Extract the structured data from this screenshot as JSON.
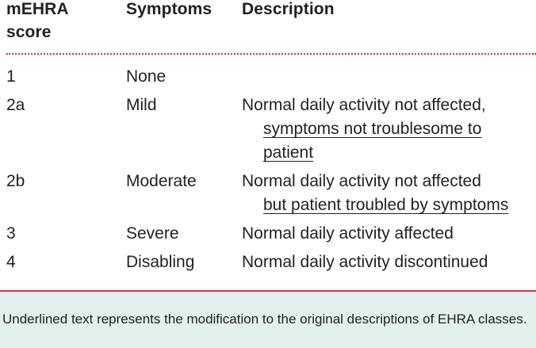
{
  "table": {
    "headers": {
      "score": "mEHRA score",
      "symptoms": "Symptoms",
      "description": "Description"
    },
    "rows": [
      {
        "score": "1",
        "symptoms": "None",
        "description": []
      },
      {
        "score": "2a",
        "symptoms": "Mild",
        "description": [
          "Normal daily activity not affected,",
          "symptoms not troublesome to",
          "patient"
        ]
      },
      {
        "score": "2b",
        "symptoms": "Moderate",
        "description": [
          "Normal daily activity not affected",
          "but patient troubled by symptoms"
        ]
      },
      {
        "score": "3",
        "symptoms": "Severe",
        "description": [
          "Normal daily activity affected"
        ]
      },
      {
        "score": "4",
        "symptoms": "Disabling",
        "description": [
          "Normal daily activity discontinued"
        ]
      }
    ]
  },
  "footnote": "Underlined text represents the modification to the original descriptions of EHRA classes.",
  "colors": {
    "rule": "#d9304b",
    "footnote_background": "#e3f0ee",
    "text": "#231f20"
  }
}
